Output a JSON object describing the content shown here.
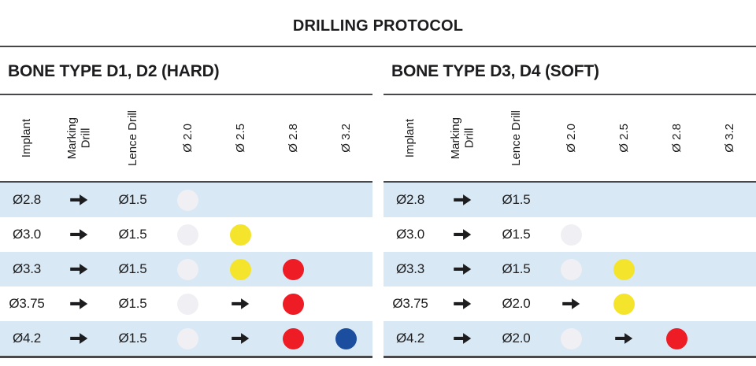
{
  "title": "DRILLING PROTOCOL",
  "columns": [
    "Implant",
    "Marking\nDrill",
    "Lence Drill",
    "Ø 2.0",
    "Ø 2.5",
    "Ø 2.8",
    "Ø 3.2"
  ],
  "colors": {
    "gray": "#f0eff3",
    "yellow": "#f5e42c",
    "red": "#ee1c25",
    "blue": "#1b4e9e",
    "row_stripe": "#d8e8f4",
    "rule_dark": "#48484a",
    "text": "#1d1d1f"
  },
  "tables": [
    {
      "heading": "BONE TYPE D1, D2 (HARD)",
      "rows": [
        {
          "implant": "Ø2.8",
          "marking": "arrow",
          "lence": "Ø1.5",
          "cells": [
            "dot:gray",
            "",
            "",
            ""
          ]
        },
        {
          "implant": "Ø3.0",
          "marking": "arrow",
          "lence": "Ø1.5",
          "cells": [
            "dot:gray",
            "dot:yellow",
            "",
            ""
          ]
        },
        {
          "implant": "Ø3.3",
          "marking": "arrow",
          "lence": "Ø1.5",
          "cells": [
            "dot:gray",
            "dot:yellow",
            "dot:red",
            ""
          ]
        },
        {
          "implant": "Ø3.75",
          "marking": "arrow",
          "lence": "Ø1.5",
          "cells": [
            "dot:gray",
            "arrow",
            "dot:red",
            ""
          ]
        },
        {
          "implant": "Ø4.2",
          "marking": "arrow",
          "lence": "Ø1.5",
          "cells": [
            "dot:gray",
            "arrow",
            "dot:red",
            "dot:blue"
          ]
        }
      ]
    },
    {
      "heading": "BONE TYPE D3, D4 (SOFT)",
      "rows": [
        {
          "implant": "Ø2.8",
          "marking": "arrow",
          "lence": "Ø1.5",
          "cells": [
            "",
            "",
            "",
            ""
          ]
        },
        {
          "implant": "Ø3.0",
          "marking": "arrow",
          "lence": "Ø1.5",
          "cells": [
            "dot:gray",
            "",
            "",
            ""
          ]
        },
        {
          "implant": "Ø3.3",
          "marking": "arrow",
          "lence": "Ø1.5",
          "cells": [
            "dot:gray",
            "dot:yellow",
            "",
            ""
          ]
        },
        {
          "implant": "Ø3.75",
          "marking": "arrow",
          "lence": "Ø2.0",
          "cells": [
            "arrow",
            "dot:yellow",
            "",
            ""
          ]
        },
        {
          "implant": "Ø4.2",
          "marking": "arrow",
          "lence": "Ø2.0",
          "cells": [
            "dot:gray",
            "arrow",
            "dot:red",
            ""
          ]
        }
      ]
    }
  ]
}
